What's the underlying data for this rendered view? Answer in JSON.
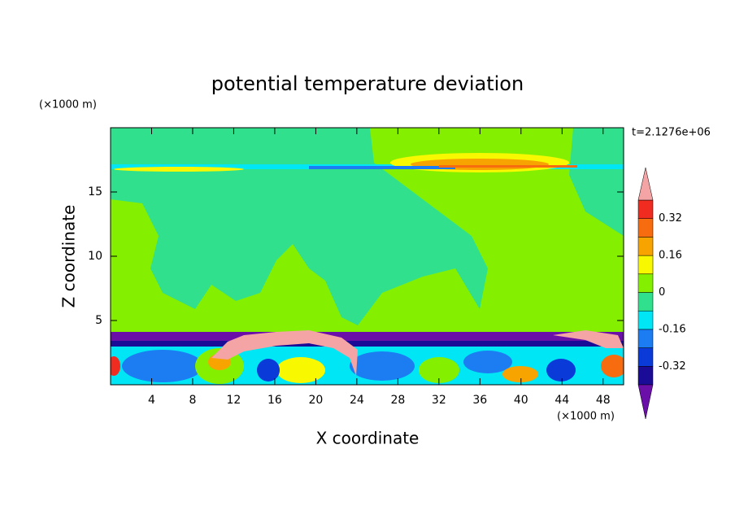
{
  "chart_data": {
    "type": "contour",
    "title": "potential temperature deviation",
    "xlabel": "X coordinate",
    "ylabel": "Z coordinate",
    "x_unit": "(×1000 m)",
    "y_unit": "(×1000 m)",
    "time_label": "t=2.1276e+06",
    "xlim": [
      0,
      50
    ],
    "ylim": [
      0,
      20
    ],
    "xticks": [
      4,
      8,
      12,
      16,
      20,
      24,
      28,
      32,
      36,
      40,
      44,
      48
    ],
    "yticks": [
      5,
      10,
      15
    ],
    "colorbar": {
      "levels": [
        -0.4,
        -0.32,
        -0.24,
        -0.16,
        -0.08,
        0,
        0.08,
        0.16,
        0.24,
        0.32,
        0.4
      ],
      "ticks": [
        -0.32,
        -0.16,
        0,
        0.16,
        0.32
      ],
      "colors": [
        "#6a10a8",
        "#1a0c96",
        "#0a3ad8",
        "#1c7cf2",
        "#00e6f4",
        "#30e08c",
        "#84f000",
        "#f8f800",
        "#f8a400",
        "#f86c10",
        "#f02c20",
        "#f4a4a4"
      ]
    }
  }
}
